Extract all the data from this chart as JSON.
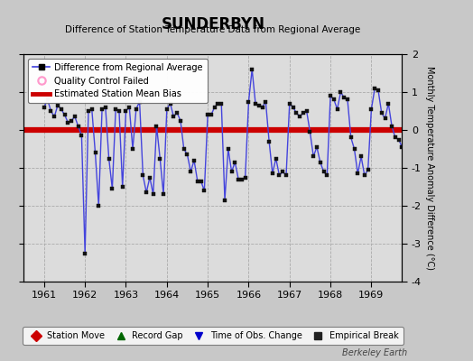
{
  "title": "SUNDERBYN",
  "subtitle": "Difference of Station Temperature Data from Regional Average",
  "ylabel_right": "Monthly Temperature Anomaly Difference (°C)",
  "bias": 0.0,
  "xlim": [
    1960.5,
    1969.75
  ],
  "ylim": [
    -4,
    2
  ],
  "yticks_right": [
    -4,
    -3,
    -2,
    -1,
    0,
    1,
    2
  ],
  "xticks": [
    1961,
    1962,
    1963,
    1964,
    1965,
    1966,
    1967,
    1968,
    1969
  ],
  "plot_bg": "#dcdcdc",
  "outer_bg": "#c8c8c8",
  "line_color": "#4444dd",
  "marker_color": "#111111",
  "bias_color": "#cc0000",
  "watermark": "Berkeley Earth",
  "values": [
    0.6,
    0.8,
    0.5,
    0.35,
    0.65,
    0.55,
    0.4,
    0.2,
    0.25,
    0.35,
    0.1,
    -0.15,
    -3.25,
    0.5,
    0.55,
    -0.6,
    -2.0,
    0.55,
    0.6,
    -0.75,
    -1.55,
    0.55,
    0.5,
    -1.5,
    0.5,
    0.6,
    -0.5,
    0.55,
    0.75,
    -1.2,
    -1.65,
    -1.25,
    -1.7,
    0.1,
    -0.75,
    -1.7,
    0.55,
    0.7,
    0.35,
    0.45,
    0.25,
    -0.5,
    -0.65,
    -1.1,
    -0.8,
    -1.35,
    -1.35,
    -1.6,
    0.4,
    0.4,
    0.6,
    0.7,
    0.7,
    -1.85,
    -0.5,
    -1.1,
    -0.85,
    -1.3,
    -1.3,
    -1.25,
    0.75,
    1.6,
    0.7,
    0.65,
    0.6,
    0.75,
    -0.3,
    -1.15,
    -0.75,
    -1.2,
    -1.1,
    -1.2,
    0.7,
    0.6,
    0.45,
    0.35,
    0.45,
    0.5,
    -0.05,
    -0.7,
    -0.45,
    -0.85,
    -1.1,
    -1.2,
    0.9,
    0.8,
    0.55,
    1.0,
    0.85,
    0.8,
    -0.2,
    -0.5,
    -1.15,
    -0.7,
    -1.2,
    -1.05,
    0.55,
    1.1,
    1.05,
    0.45,
    0.3,
    0.7,
    0.1,
    -0.2,
    -0.25,
    -0.45,
    -0.45,
    -0.5
  ]
}
